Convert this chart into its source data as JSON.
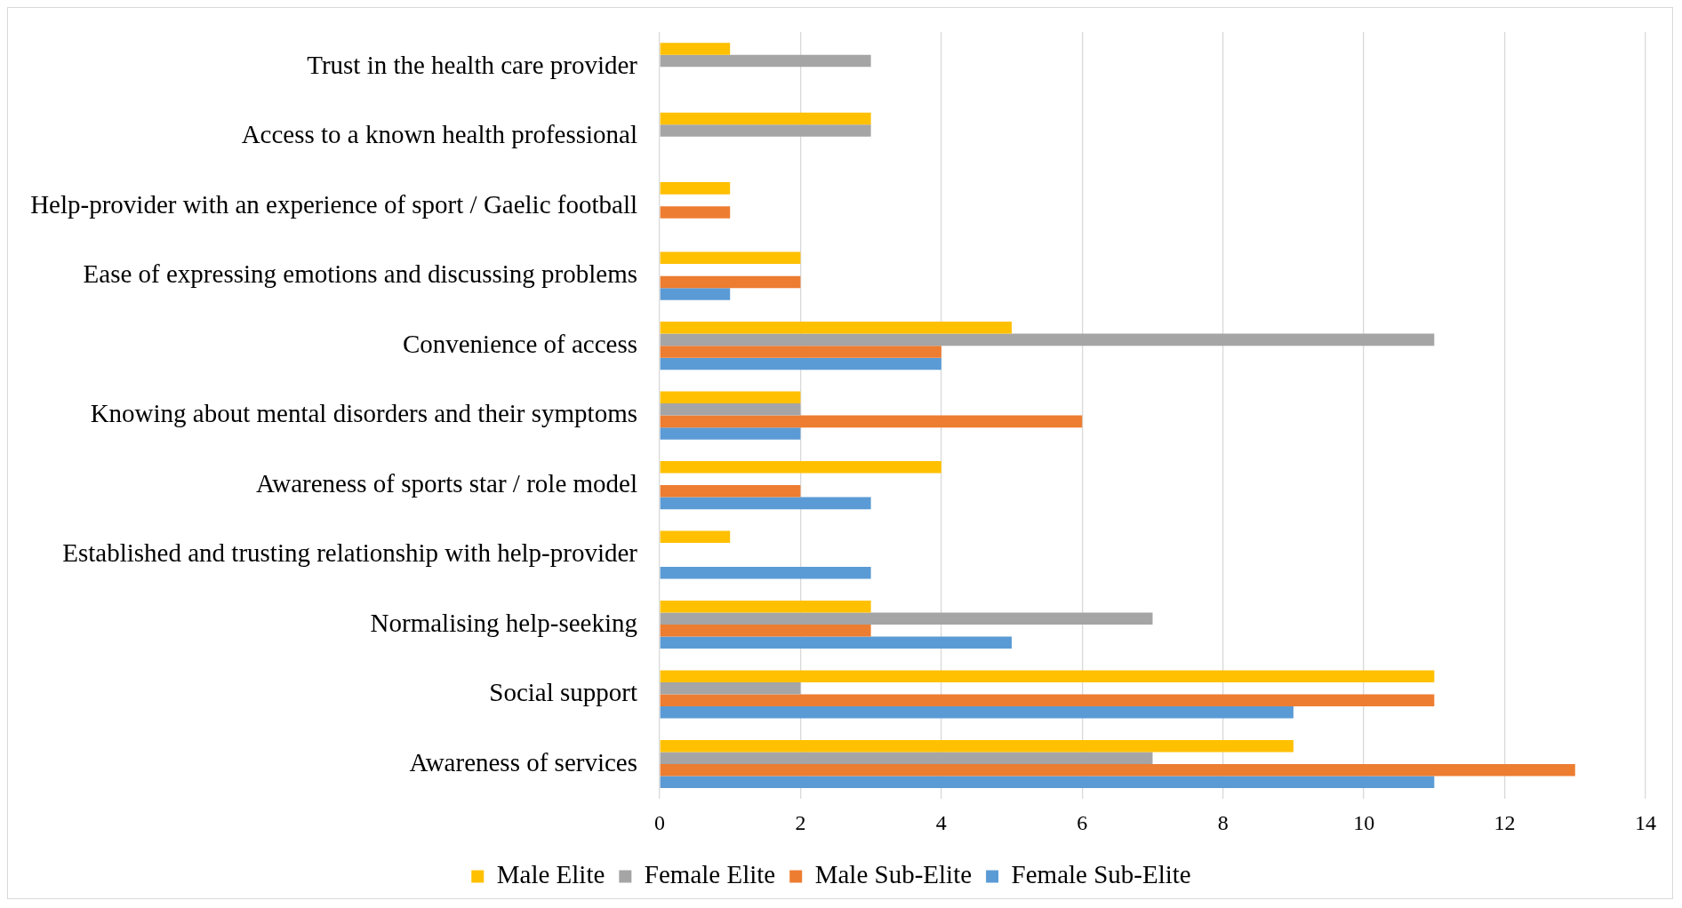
{
  "chart_data": {
    "type": "bar",
    "orientation": "horizontal",
    "categories": [
      "Trust in the health care provider",
      "Access to a known health professional",
      "Help-provider with an experience of sport / Gaelic football",
      "Ease of expressing emotions and discussing problems",
      "Convenience of access",
      "Knowing about mental disorders and their symptoms",
      "Awareness of sports star / role model",
      "Established and trusting relationship with help-provider",
      "Normalising help-seeking",
      "Social support",
      "Awareness of services"
    ],
    "series": [
      {
        "name": "Male Elite",
        "color": "#ffc000",
        "values": [
          1,
          3,
          1,
          2,
          5,
          2,
          4,
          1,
          3,
          11,
          9
        ]
      },
      {
        "name": "Female Elite",
        "color": "#a5a5a5",
        "values": [
          3,
          3,
          0,
          0,
          11,
          2,
          0,
          0,
          7,
          2,
          7
        ]
      },
      {
        "name": "Male Sub-Elite",
        "color": "#ed7d31",
        "values": [
          0,
          0,
          1,
          2,
          4,
          6,
          2,
          0,
          3,
          11,
          13
        ]
      },
      {
        "name": "Female Sub-Elite",
        "color": "#5b9bd5",
        "values": [
          0,
          0,
          0,
          1,
          4,
          2,
          3,
          3,
          5,
          9,
          11
        ]
      }
    ],
    "xlim": [
      0,
      14
    ],
    "xticks": [
      0,
      2,
      4,
      6,
      8,
      10,
      12,
      14
    ],
    "grid": "x",
    "legend": "bottom"
  }
}
